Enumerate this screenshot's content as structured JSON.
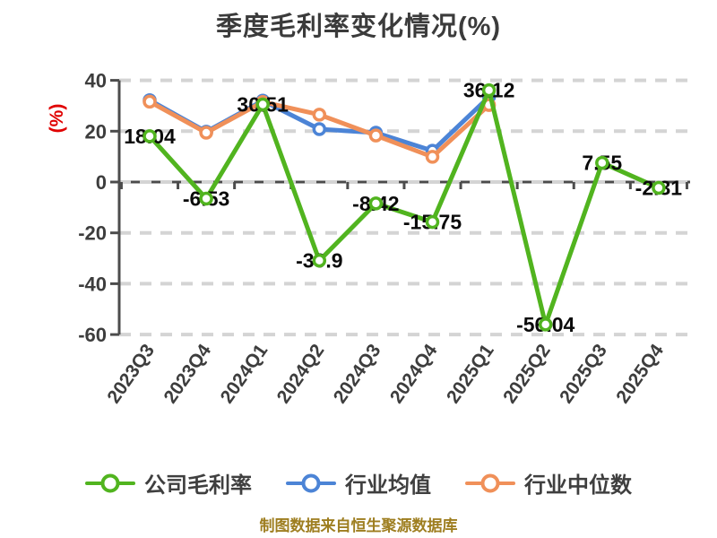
{
  "title": "季度毛利率变化情况(%)",
  "y_axis_label": "(%)",
  "footer": "制图数据来自恒生聚源数据库",
  "colors": {
    "company_green": "#51b41f",
    "industry_avg_blue": "#4c84d6",
    "industry_median_orange": "#f09059",
    "title_text": "#3b3b3b",
    "axis_text": "#3d3d3d",
    "data_label": "#0a0a0a",
    "grid_line": "#d4d4d4",
    "axis_line": "#4c4c4c",
    "y_unit_red": "#e00000",
    "footer_text": "#9e7e20"
  },
  "chart_data": {
    "type": "line",
    "title": "季度毛利率变化情况(%)",
    "categories": [
      "2023Q3",
      "2023Q4",
      "2024Q1",
      "2024Q2",
      "2024Q3",
      "2024Q4",
      "2025Q1",
      "2025Q2",
      "2025Q3",
      "2025Q4"
    ],
    "ylim": [
      -60,
      40
    ],
    "yticks": [
      40,
      20,
      0,
      -20,
      -40,
      -60
    ],
    "grid": "horizontal dashed",
    "legend_position": "bottom",
    "note": "Only the company series shows data labels; industry series values are estimated from the plot and end at 2025Q1.",
    "series": [
      {
        "name": "公司毛利率",
        "color": "#51b41f",
        "labels_shown": true,
        "values": [
          18.04,
          -6.53,
          30.51,
          -30.9,
          -8.42,
          -15.75,
          36.12,
          -56.04,
          7.55,
          -2.31
        ]
      },
      {
        "name": "行业均值",
        "color": "#4c84d6",
        "labels_shown": false,
        "values": [
          32.2,
          19.8,
          32.0,
          20.8,
          19.4,
          12.3,
          33.5,
          null,
          null,
          null
        ]
      },
      {
        "name": "行业中位数",
        "color": "#f09059",
        "labels_shown": false,
        "values": [
          31.6,
          19.4,
          31.5,
          26.5,
          18.3,
          9.9,
          30.3,
          null,
          null,
          null
        ]
      }
    ]
  }
}
